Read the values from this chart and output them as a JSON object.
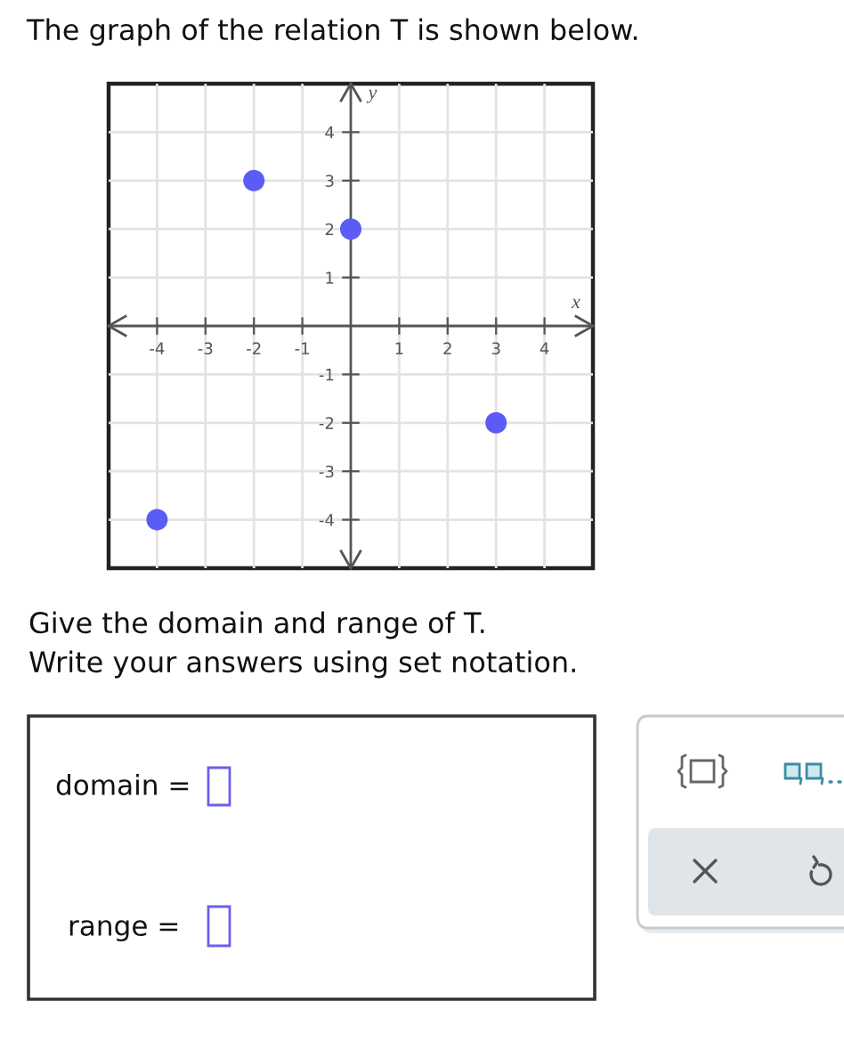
{
  "chart_data": {
    "type": "scatter",
    "title": "The graph of the relation T is shown below.",
    "xlabel": "x",
    "ylabel": "y",
    "x": [
      -4,
      -2,
      0,
      3
    ],
    "series": [
      {
        "color": "#5b5bf6",
        "values": [
          -4,
          3,
          2,
          -2
        ]
      }
    ],
    "xlim": [
      -5,
      5
    ],
    "ylim": [
      -5,
      5
    ],
    "xticks": [
      -4,
      -3,
      -2,
      -1,
      1,
      2,
      3,
      4
    ],
    "yticks": [
      -4,
      -3,
      -2,
      -1,
      1,
      2,
      3,
      4
    ],
    "grid": true,
    "marker": "circle",
    "annotations": [
      "Give the domain and range of T.",
      "Write your answers using set notation.",
      "domain =",
      "range ="
    ]
  }
}
